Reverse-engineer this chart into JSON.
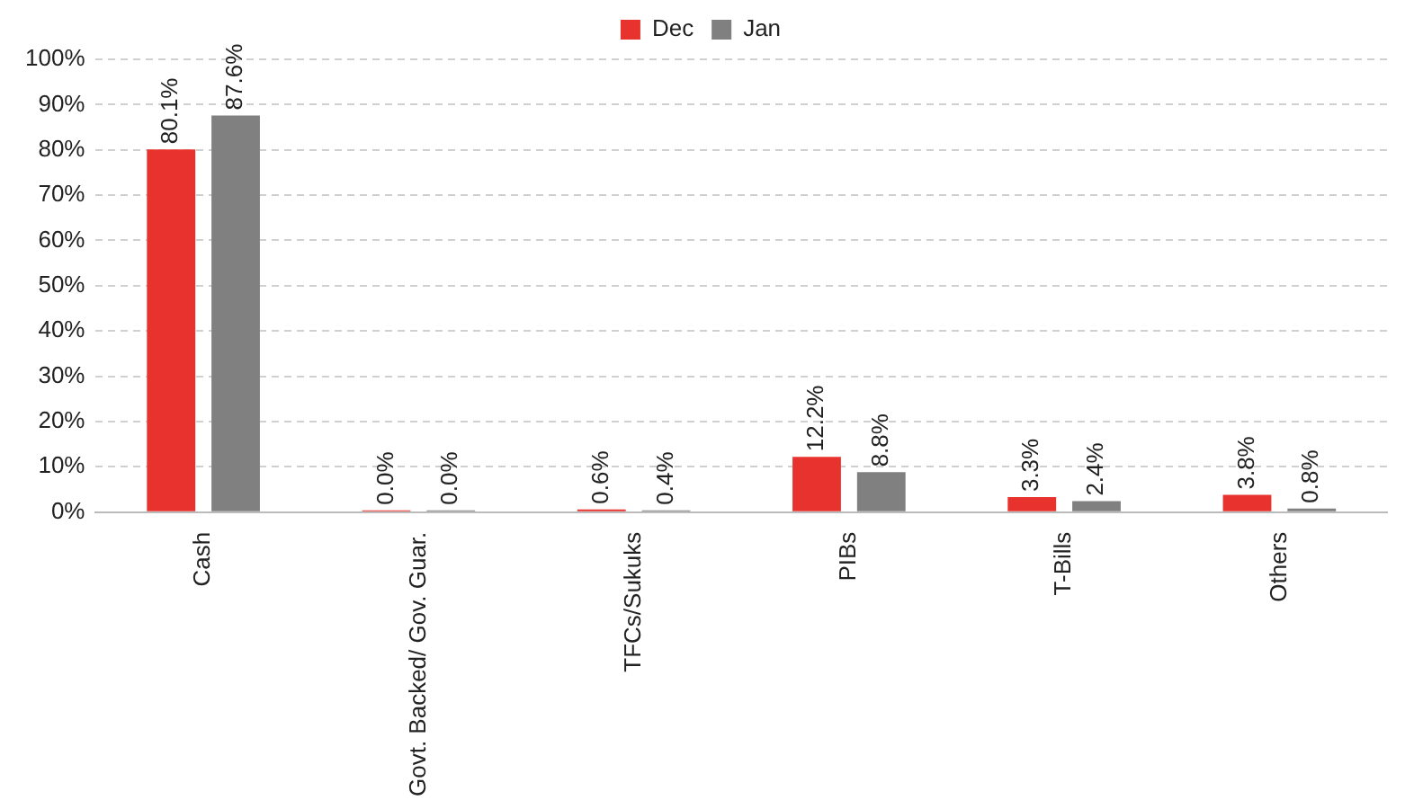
{
  "chart_data": {
    "type": "bar",
    "categories": [
      "Cash",
      "Govt. Backed/ Gov. Guar.",
      "TFCs/Sukuks",
      "PIBs",
      "T-Bills",
      "Others"
    ],
    "series": [
      {
        "name": "Dec",
        "color": "#e8322e",
        "values": [
          80.1,
          0.0,
          0.6,
          12.2,
          3.3,
          3.8
        ],
        "value_labels": [
          "80.1%",
          "0.0%",
          "0.6%",
          "12.2%",
          "3.3%",
          "3.8%"
        ]
      },
      {
        "name": "Jan",
        "color": "#808080",
        "values": [
          87.6,
          0.0,
          0.4,
          8.8,
          2.4,
          0.8
        ],
        "value_labels": [
          "87.6%",
          "0.0%",
          "0.4%",
          "8.8%",
          "2.4%",
          "0.8%"
        ]
      }
    ],
    "ylim": [
      0,
      100
    ],
    "yticks": [
      {
        "value": 0,
        "label": "0%"
      },
      {
        "value": 10,
        "label": "10%"
      },
      {
        "value": 20,
        "label": "20%"
      },
      {
        "value": 30,
        "label": "30%"
      },
      {
        "value": 40,
        "label": "40%"
      },
      {
        "value": 50,
        "label": "50%"
      },
      {
        "value": 60,
        "label": "60%"
      },
      {
        "value": 70,
        "label": "70%"
      },
      {
        "value": 80,
        "label": "80%"
      },
      {
        "value": 90,
        "label": "90%"
      },
      {
        "value": 100,
        "label": "100%"
      }
    ],
    "grid": "y",
    "legend": "top"
  }
}
